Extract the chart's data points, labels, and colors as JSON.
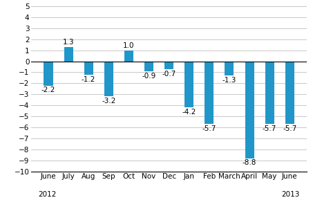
{
  "categories": [
    "June",
    "July",
    "Aug",
    "Sep",
    "Oct",
    "Nov",
    "Dec",
    "Jan",
    "Feb",
    "March",
    "April",
    "May",
    "June"
  ],
  "values": [
    -2.2,
    1.3,
    -1.2,
    -3.2,
    1.0,
    -0.9,
    -0.7,
    -4.2,
    -5.7,
    -1.3,
    -8.8,
    -5.7,
    -5.7
  ],
  "bar_color": "#2196c8",
  "ylim": [
    -10,
    5
  ],
  "yticks": [
    -10,
    -9,
    -8,
    -7,
    -6,
    -5,
    -4,
    -3,
    -2,
    -1,
    0,
    1,
    2,
    3,
    4,
    5
  ],
  "label_fontsize": 7.5,
  "value_fontsize": 7.5,
  "background_color": "#ffffff",
  "grid_color": "#c8c8c8",
  "bar_width": 0.45
}
